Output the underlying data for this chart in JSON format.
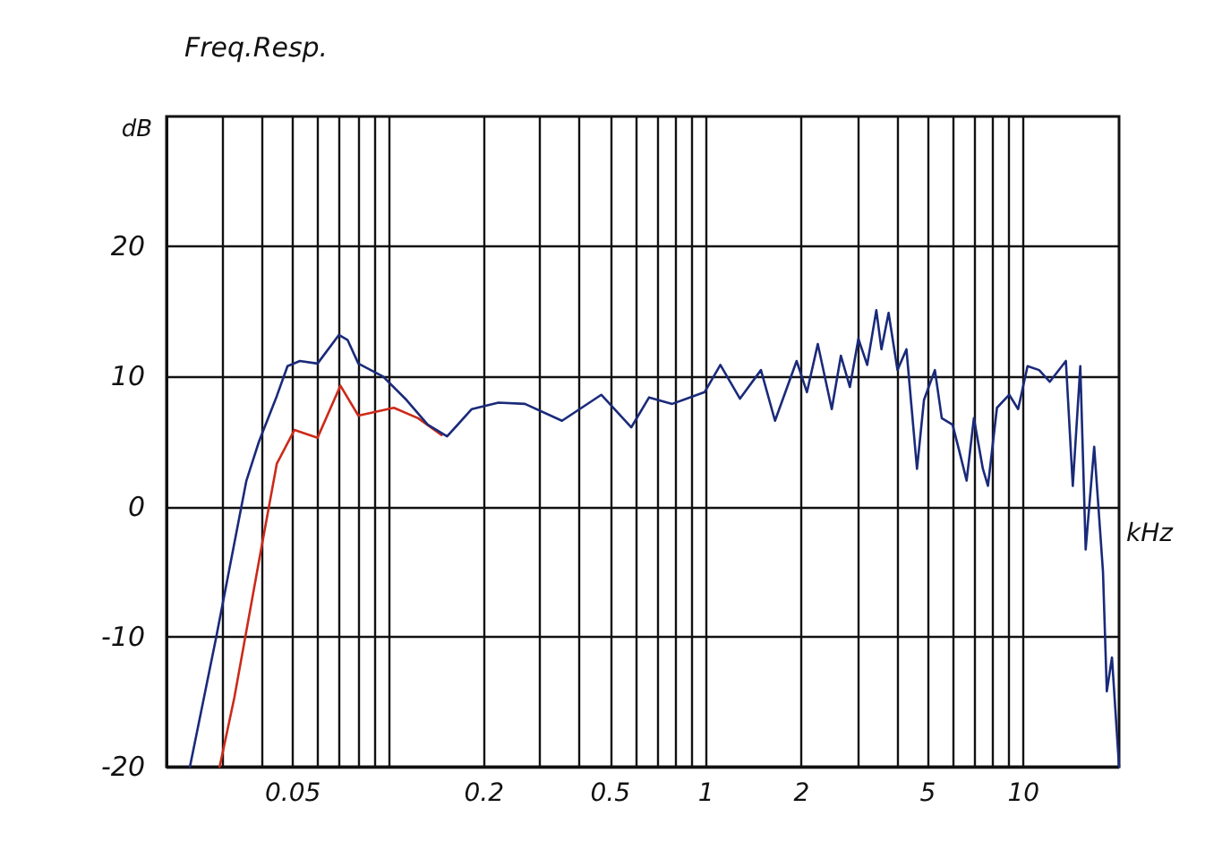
{
  "chart_data": {
    "type": "line",
    "title": "Freq.Resp.",
    "xlabel": "kHz",
    "ylabel": "dB",
    "log": "x",
    "xlim": [
      0.02,
      20
    ],
    "ylim": [
      -20,
      30
    ],
    "xticks": [
      {
        "value": 0.03,
        "label": null
      },
      {
        "value": 0.04,
        "label": null
      },
      0.05,
      {
        "value": 0.06,
        "label": null
      },
      {
        "value": 0.07,
        "label": null
      },
      {
        "value": 0.08,
        "label": null
      },
      {
        "value": 0.09,
        "label": null
      },
      {
        "value": 0.1,
        "label": null
      },
      0.2,
      {
        "value": 0.3,
        "label": null
      },
      {
        "value": 0.4,
        "label": null
      },
      0.5,
      {
        "value": 0.6,
        "label": null
      },
      {
        "value": 0.7,
        "label": null
      },
      {
        "value": 0.8,
        "label": null
      },
      {
        "value": 0.9,
        "label": null
      },
      1,
      2,
      {
        "value": 3,
        "label": null
      },
      {
        "value": 4,
        "label": null
      },
      5,
      {
        "value": 6,
        "label": null
      },
      {
        "value": 7,
        "label": null
      },
      {
        "value": 8,
        "label": null
      },
      {
        "value": 9,
        "label": null
      },
      10
    ],
    "yticks": [
      -20,
      -10,
      0,
      10,
      20
    ],
    "grid": true,
    "marker": "none",
    "line_style": "solid",
    "series": [
      {
        "color": "#cc2a1a",
        "x": [
          0.0294,
          0.0327,
          0.0391,
          0.0445,
          0.0506,
          0.0598,
          0.0706,
          0.0804,
          0.104,
          0.124,
          0.147
        ],
        "values": [
          -20,
          -14.7,
          -4.2,
          3.3,
          5.9,
          5.3,
          9.3,
          7,
          7.6,
          6.8,
          5.5
        ]
      },
      {
        "color": "#1a2a7a",
        "x": [
          0.0237,
          0.0287,
          0.0357,
          0.0391,
          0.0445,
          0.0481,
          0.0526,
          0.0598,
          0.0698,
          0.0744,
          0.0804,
          0.0962,
          0.114,
          0.133,
          0.153,
          0.183,
          0.222,
          0.269,
          0.352,
          0.468,
          0.582,
          0.662,
          0.783,
          0.99,
          1.11,
          1.28,
          1.49,
          1.65,
          1.93,
          2.08,
          2.25,
          2.49,
          2.66,
          2.84,
          3.02,
          3.22,
          3.44,
          3.57,
          3.76,
          4.01,
          4.28,
          4.62,
          4.86,
          5.26,
          5.53,
          5.98,
          6.29,
          6.62,
          6.98,
          7.45,
          7.73,
          8.25,
          9.02,
          9.62,
          10.3,
          11.2,
          12.1,
          13.6,
          14.3,
          15.1,
          15.7,
          16.7,
          17.8,
          18.3,
          19.0,
          20.0
        ],
        "values": [
          -20,
          -10,
          2,
          5,
          8.5,
          10.8,
          11.2,
          11,
          13.2,
          12.8,
          11,
          10,
          8.2,
          6.3,
          5.4,
          7.5,
          8,
          7.9,
          6.6,
          8.6,
          6.1,
          8.4,
          7.9,
          8.8,
          10.9,
          8.3,
          10.5,
          6.6,
          11.2,
          8.8,
          12.5,
          7.5,
          11.6,
          9.2,
          12.9,
          10.9,
          15.1,
          12.1,
          14.9,
          10.5,
          12.1,
          2.9,
          8.2,
          10.5,
          6.8,
          6.3,
          4.2,
          2,
          6.8,
          2.9,
          1.6,
          7.6,
          8.6,
          7.5,
          10.8,
          10.5,
          9.6,
          11.2,
          1.6,
          10.8,
          -3.3,
          4.6,
          -5,
          -14.2,
          -11.6,
          -20
        ]
      }
    ]
  }
}
